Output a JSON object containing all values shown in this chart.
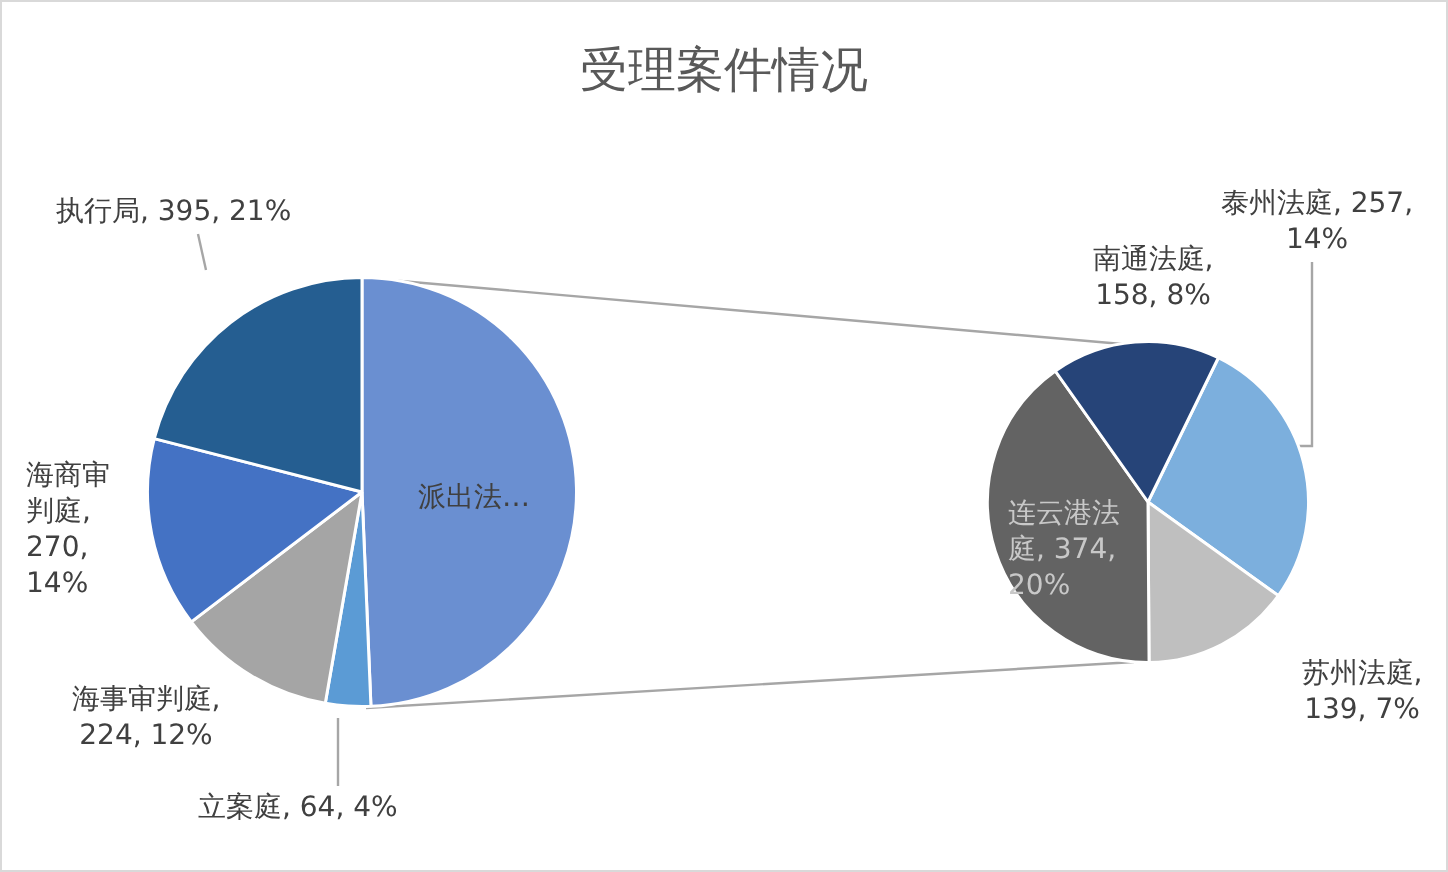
{
  "chart_data": [
    {
      "type": "pie",
      "title": "受理案件情况",
      "categories": [
        "派出法…",
        "立案庭",
        "海事审判庭",
        "海商审判庭",
        "执行局"
      ],
      "values": [
        928,
        64,
        224,
        270,
        395
      ],
      "colors": [
        "#6a8fd1",
        "#5b9bd5",
        "#a5a5a5",
        "#4472c4",
        "#255e91"
      ],
      "value_labels": [
        null,
        ", 64, 4%",
        ", 224, 12%",
        ", 270, 14%",
        ", 395, 21%"
      ]
    },
    {
      "type": "pie",
      "categories": [
        "泰州法庭",
        "苏州法庭",
        "连云港法庭",
        "南通法庭"
      ],
      "values": [
        257,
        139,
        374,
        158
      ],
      "colors": [
        "#7cafdd",
        "#bfbfbf",
        "#636363",
        "#264478"
      ],
      "value_labels": [
        ", 257, 14%",
        ", 139, 7%",
        ", 374, 20%",
        ", 158, 8%"
      ]
    }
  ]
}
